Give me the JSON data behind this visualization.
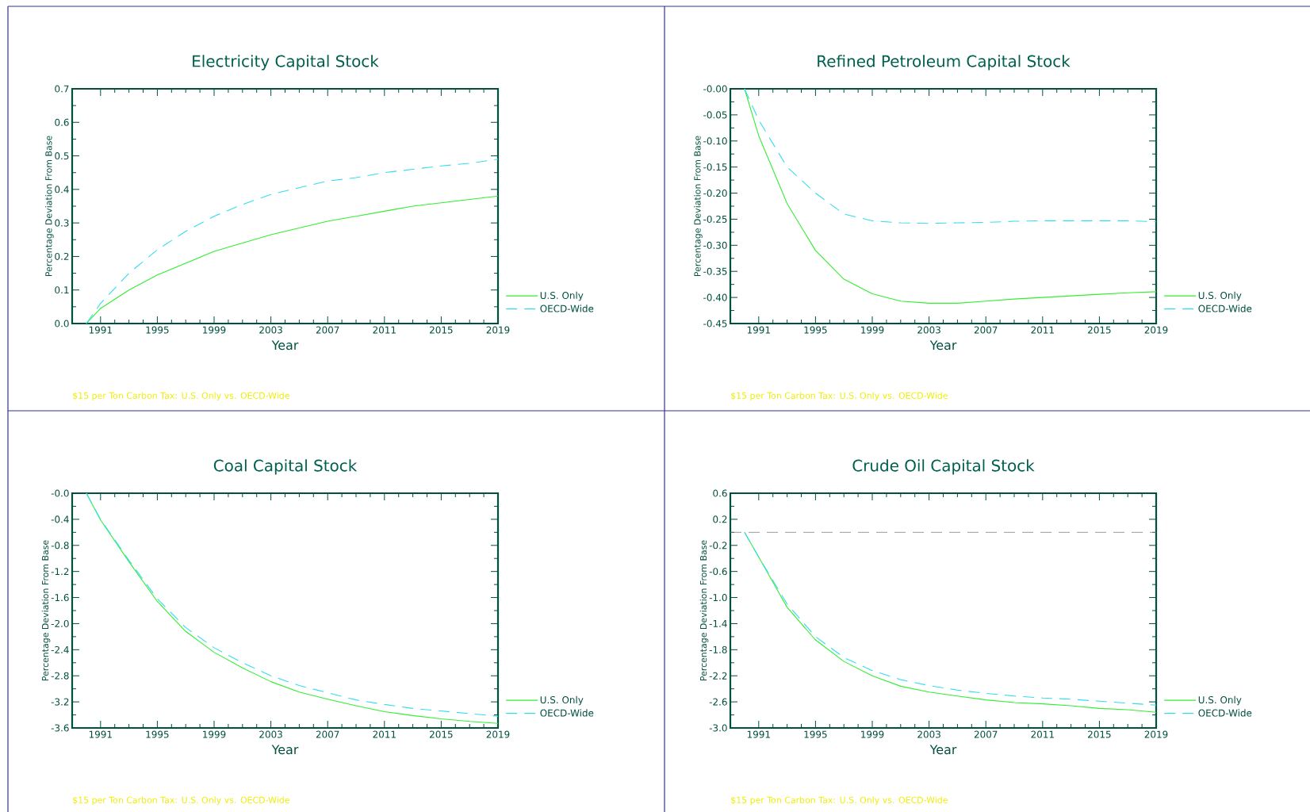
{
  "chart_data": [
    {
      "type": "line",
      "title": "Electricity Capital Stock",
      "xlabel": "Year",
      "ylabel": "Percentage Deviation From Base",
      "annotations": [
        "$15 per Ton Carbon Tax: U.S. Only vs. OECD-Wide"
      ],
      "x": [
        1990,
        1991,
        1993,
        1995,
        1997,
        1999,
        2001,
        2003,
        2005,
        2007,
        2009,
        2011,
        2013,
        2015,
        2017,
        2019
      ],
      "xlim": [
        1989,
        2019
      ],
      "xticks": [
        1991,
        1995,
        1999,
        2003,
        2007,
        2011,
        2015,
        2019
      ],
      "ylim": [
        0,
        0.7
      ],
      "yticks": [
        {
          "value": 0,
          "label": "0.0"
        },
        {
          "value": 0.1,
          "label": "0.1"
        },
        {
          "value": 0.2,
          "label": "0.2"
        },
        {
          "value": 0.3,
          "label": "0.3"
        },
        {
          "value": 0.4,
          "label": "0.4"
        },
        {
          "value": 0.5,
          "label": "0.5"
        },
        {
          "value": 0.6,
          "label": "0.6"
        },
        {
          "value": 0.7,
          "label": "0.7"
        }
      ],
      "legend": "bottom right",
      "series": [
        {
          "name": "U.S. Only",
          "color": "#33ee33",
          "line_style": "solid",
          "values": [
            0,
            0.045,
            0.1,
            0.145,
            0.18,
            0.215,
            0.24,
            0.265,
            0.285,
            0.305,
            0.32,
            0.335,
            0.35,
            0.36,
            0.37,
            0.38
          ]
        },
        {
          "name": "OECD-Wide",
          "color": "#33ddee",
          "line_style": "dashed",
          "values": [
            0,
            0.06,
            0.15,
            0.22,
            0.275,
            0.32,
            0.355,
            0.385,
            0.405,
            0.425,
            0.435,
            0.45,
            0.46,
            0.47,
            0.478,
            0.49
          ]
        }
      ]
    },
    {
      "type": "line",
      "title": "Refined Petroleum Capital Stock",
      "xlabel": "Year",
      "ylabel": "Percentage Deviation From Base",
      "annotations": [
        "$15 per Ton Carbon Tax: U.S. Only vs. OECD-Wide"
      ],
      "x": [
        1990,
        1991,
        1993,
        1995,
        1997,
        1999,
        2001,
        2003,
        2005,
        2007,
        2009,
        2011,
        2013,
        2015,
        2017,
        2019
      ],
      "xlim": [
        1989,
        2019
      ],
      "xticks": [
        1991,
        1995,
        1999,
        2003,
        2007,
        2011,
        2015,
        2019
      ],
      "ylim": [
        -0.45,
        0
      ],
      "yticks": [
        {
          "value": 0,
          "label": "-0.00"
        },
        {
          "value": -0.05,
          "label": "-0.05"
        },
        {
          "value": -0.1,
          "label": "-0.10"
        },
        {
          "value": -0.15,
          "label": "-0.15"
        },
        {
          "value": -0.2,
          "label": "-0.20"
        },
        {
          "value": -0.25,
          "label": "-0.25"
        },
        {
          "value": -0.3,
          "label": "-0.30"
        },
        {
          "value": -0.35,
          "label": "-0.35"
        },
        {
          "value": -0.4,
          "label": "-0.40"
        },
        {
          "value": -0.45,
          "label": "-0.45"
        }
      ],
      "legend": "bottom right",
      "series": [
        {
          "name": "U.S. Only",
          "color": "#33ee33",
          "line_style": "solid",
          "values": [
            0,
            -0.09,
            -0.22,
            -0.31,
            -0.365,
            -0.393,
            -0.407,
            -0.411,
            -0.411,
            -0.407,
            -0.403,
            -0.4,
            -0.397,
            -0.394,
            -0.391,
            -0.389
          ]
        },
        {
          "name": "OECD-Wide",
          "color": "#33ddee",
          "line_style": "dashed",
          "values": [
            0,
            -0.06,
            -0.15,
            -0.2,
            -0.24,
            -0.253,
            -0.257,
            -0.258,
            -0.257,
            -0.256,
            -0.254,
            -0.253,
            -0.253,
            -0.253,
            -0.253,
            -0.255
          ]
        }
      ]
    },
    {
      "type": "line",
      "title": "Coal Capital Stock",
      "xlabel": "Year",
      "ylabel": "Percentage Deviation From Base",
      "annotations": [
        "$15 per Ton Carbon Tax: U.S. Only vs. OECD-Wide"
      ],
      "x": [
        1990,
        1991,
        1993,
        1995,
        1997,
        1999,
        2001,
        2003,
        2005,
        2007,
        2009,
        2011,
        2013,
        2015,
        2017,
        2019
      ],
      "xlim": [
        1989,
        2019
      ],
      "xticks": [
        1991,
        1995,
        1999,
        2003,
        2007,
        2011,
        2015,
        2019
      ],
      "ylim": [
        -3.6,
        0
      ],
      "yticks": [
        {
          "value": 0,
          "label": "-0.0"
        },
        {
          "value": -0.4,
          "label": "-0.4"
        },
        {
          "value": -0.8,
          "label": "-0.8"
        },
        {
          "value": -1.2,
          "label": "-1.2"
        },
        {
          "value": -1.6,
          "label": "-1.6"
        },
        {
          "value": -2.0,
          "label": "-2.0"
        },
        {
          "value": -2.4,
          "label": "-2.4"
        },
        {
          "value": -2.8,
          "label": "-2.8"
        },
        {
          "value": -3.2,
          "label": "-3.2"
        },
        {
          "value": -3.6,
          "label": "-3.6"
        }
      ],
      "legend": "bottom right",
      "series": [
        {
          "name": "U.S. Only",
          "color": "#33ee33",
          "line_style": "solid",
          "values": [
            0,
            -0.41,
            -1.05,
            -1.66,
            -2.12,
            -2.44,
            -2.68,
            -2.89,
            -3.05,
            -3.16,
            -3.26,
            -3.35,
            -3.41,
            -3.46,
            -3.5,
            -3.53
          ]
        },
        {
          "name": "OECD-Wide",
          "color": "#33ddee",
          "line_style": "dashed",
          "values": [
            0,
            -0.4,
            -1.03,
            -1.62,
            -2.06,
            -2.37,
            -2.6,
            -2.8,
            -2.95,
            -3.06,
            -3.17,
            -3.24,
            -3.3,
            -3.34,
            -3.38,
            -3.42
          ]
        }
      ]
    },
    {
      "type": "line",
      "title": "Crude Oil Capital Stock",
      "xlabel": "Year",
      "ylabel": "Percentage Deviation From Base",
      "annotations": [
        "$15 per Ton Carbon Tax: U.S. Only vs. OECD-Wide"
      ],
      "x": [
        1990,
        1991,
        1993,
        1995,
        1997,
        1999,
        2001,
        2003,
        2005,
        2007,
        2009,
        2011,
        2013,
        2015,
        2017,
        2019
      ],
      "xlim": [
        1989,
        2019
      ],
      "xticks": [
        1991,
        1995,
        1999,
        2003,
        2007,
        2011,
        2015,
        2019
      ],
      "ylim": [
        -3.0,
        0.6
      ],
      "yticks": [
        {
          "value": 0.6,
          "label": "0.6"
        },
        {
          "value": 0.2,
          "label": "0.2"
        },
        {
          "value": -0.2,
          "label": "-0.2"
        },
        {
          "value": -0.6,
          "label": "-0.6"
        },
        {
          "value": -1.0,
          "label": "-1.0"
        },
        {
          "value": -1.4,
          "label": "-1.4"
        },
        {
          "value": -1.8,
          "label": "-1.8"
        },
        {
          "value": -2.2,
          "label": "-2.2"
        },
        {
          "value": -2.6,
          "label": "-2.6"
        },
        {
          "value": -3.0,
          "label": "-3.0"
        }
      ],
      "legend": "bottom right",
      "ref_lines": [
        {
          "axis": "y",
          "value": 0,
          "color": "#808080",
          "line_style": "dashed"
        }
      ],
      "series": [
        {
          "name": "U.S. Only",
          "color": "#33ee33",
          "line_style": "solid",
          "values": [
            0,
            -0.38,
            -1.15,
            -1.65,
            -1.98,
            -2.2,
            -2.36,
            -2.45,
            -2.51,
            -2.57,
            -2.61,
            -2.63,
            -2.66,
            -2.7,
            -2.72,
            -2.76
          ]
        },
        {
          "name": "OECD-Wide",
          "color": "#33ddee",
          "line_style": "dashed",
          "values": [
            0,
            -0.38,
            -1.1,
            -1.6,
            -1.92,
            -2.12,
            -2.26,
            -2.35,
            -2.42,
            -2.47,
            -2.51,
            -2.54,
            -2.56,
            -2.59,
            -2.62,
            -2.65
          ]
        }
      ]
    }
  ]
}
